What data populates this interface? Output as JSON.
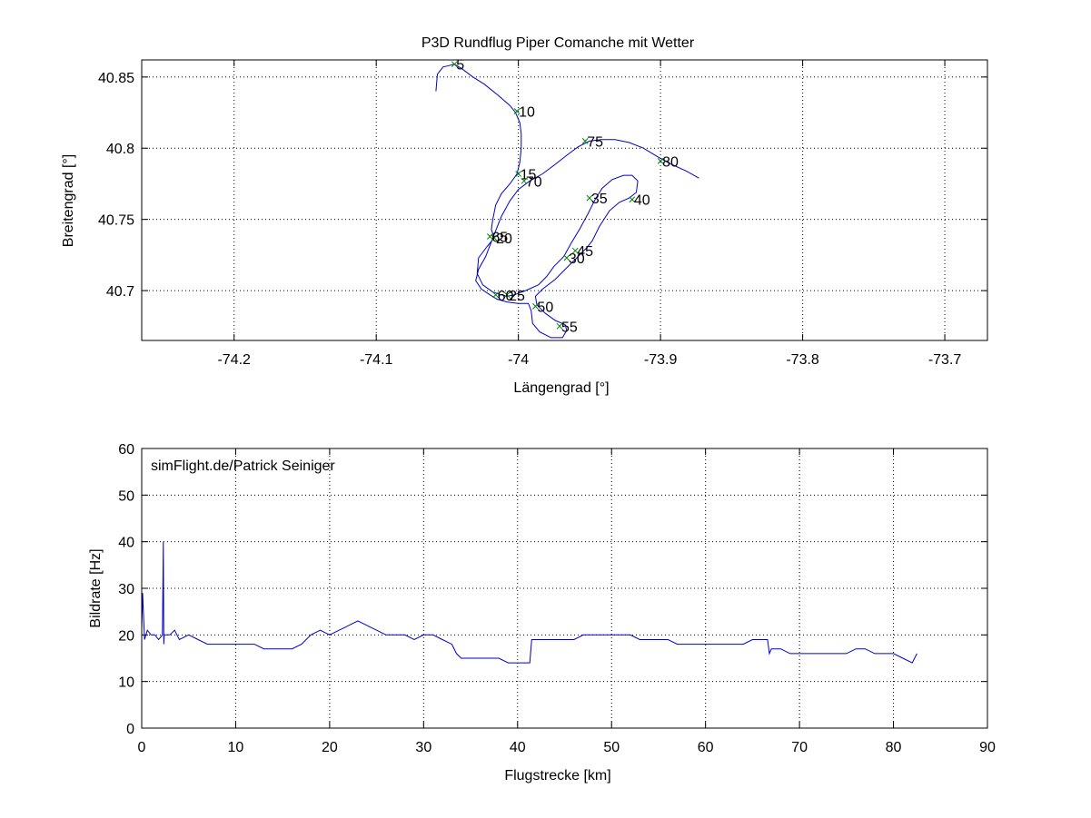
{
  "figure": {
    "background": "#ffffff"
  },
  "chart_data": [
    {
      "type": "line",
      "title": "P3D Rundflug Piper Comanche mit Wetter",
      "xlabel": "Längengrad [°]",
      "ylabel": "Breitengrad [°]",
      "xlim": [
        -74.265,
        -73.67
      ],
      "ylim": [
        40.665,
        40.862
      ],
      "xticks": [
        -74.2,
        -74.1,
        -74,
        -73.9,
        -73.8,
        -73.7
      ],
      "xtick_labels": [
        "-74.2",
        "-74.1",
        "-74",
        "-73.9",
        "-73.8",
        "-73.7"
      ],
      "yticks": [
        40.7,
        40.75,
        40.8,
        40.85
      ],
      "ytick_labels": [
        "40.7",
        "40.75",
        "40.8",
        "40.85"
      ],
      "grid": true,
      "line_color": "#0000c8",
      "marker_color": "#008000",
      "track": [
        [
          -74.058,
          40.84
        ],
        [
          -74.057,
          40.852
        ],
        [
          -74.053,
          40.857
        ],
        [
          -74.049,
          40.858
        ],
        [
          -74.045,
          40.859
        ],
        [
          -74.04,
          40.856
        ],
        [
          -74.032,
          40.85
        ],
        [
          -74.024,
          40.845
        ],
        [
          -74.014,
          40.837
        ],
        [
          -74.006,
          40.83
        ],
        [
          -74.002,
          40.825
        ],
        [
          -73.999,
          40.818
        ],
        [
          -73.998,
          40.81
        ],
        [
          -73.998,
          40.8
        ],
        [
          -73.999,
          40.79
        ],
        [
          -74.001,
          40.782
        ],
        [
          -74.006,
          40.775
        ],
        [
          -74.012,
          40.768
        ],
        [
          -74.016,
          40.76
        ],
        [
          -74.018,
          40.75
        ],
        [
          -74.019,
          40.743
        ],
        [
          -74.017,
          40.737
        ],
        [
          -74.022,
          40.731
        ],
        [
          -74.028,
          40.723
        ],
        [
          -74.029,
          40.712
        ],
        [
          -74.025,
          40.704
        ],
        [
          -74.018,
          40.699
        ],
        [
          -74.012,
          40.697
        ],
        [
          -74.008,
          40.696
        ],
        [
          -74.003,
          40.697
        ],
        [
          -73.995,
          40.7
        ],
        [
          -73.986,
          40.704
        ],
        [
          -73.98,
          40.71
        ],
        [
          -73.975,
          40.717
        ],
        [
          -73.968,
          40.724
        ],
        [
          -73.963,
          40.733
        ],
        [
          -73.957,
          40.743
        ],
        [
          -73.951,
          40.754
        ],
        [
          -73.946,
          40.764
        ],
        [
          -73.941,
          40.772
        ],
        [
          -73.934,
          40.778
        ],
        [
          -73.926,
          40.781
        ],
        [
          -73.92,
          40.781
        ],
        [
          -73.916,
          40.777
        ],
        [
          -73.917,
          40.769
        ],
        [
          -73.922,
          40.765
        ],
        [
          -73.929,
          40.762
        ],
        [
          -73.936,
          40.756
        ],
        [
          -73.943,
          40.745
        ],
        [
          -73.948,
          40.735
        ],
        [
          -73.952,
          40.73
        ],
        [
          -73.958,
          40.724
        ],
        [
          -73.966,
          40.716
        ],
        [
          -73.974,
          40.708
        ],
        [
          -73.983,
          40.701
        ],
        [
          -73.988,
          40.696
        ],
        [
          -73.987,
          40.69
        ],
        [
          -73.981,
          40.684
        ],
        [
          -73.974,
          40.679
        ],
        [
          -73.967,
          40.676
        ],
        [
          -73.966,
          40.672
        ],
        [
          -73.969,
          40.667
        ],
        [
          -73.977,
          40.667
        ],
        [
          -73.985,
          40.671
        ],
        [
          -73.99,
          40.677
        ],
        [
          -73.991,
          40.686
        ],
        [
          -73.993,
          40.691
        ],
        [
          -74.0,
          40.691
        ],
        [
          -74.008,
          40.692
        ],
        [
          -74.015,
          40.694
        ],
        [
          -74.02,
          40.697
        ],
        [
          -74.026,
          40.701
        ],
        [
          -74.03,
          40.707
        ],
        [
          -74.028,
          40.715
        ],
        [
          -74.023,
          40.724
        ],
        [
          -74.018,
          40.737
        ],
        [
          -74.012,
          40.752
        ],
        [
          -74.006,
          40.763
        ],
        [
          -74.0,
          40.771
        ],
        [
          -73.992,
          40.777
        ],
        [
          -73.983,
          40.782
        ],
        [
          -73.975,
          40.788
        ],
        [
          -73.966,
          40.795
        ],
        [
          -73.958,
          40.801
        ],
        [
          -73.95,
          40.805
        ],
        [
          -73.942,
          40.806
        ],
        [
          -73.932,
          40.806
        ],
        [
          -73.922,
          40.804
        ],
        [
          -73.912,
          40.8
        ],
        [
          -73.902,
          40.794
        ],
        [
          -73.893,
          40.789
        ],
        [
          -73.882,
          40.784
        ],
        [
          -73.873,
          40.779
        ]
      ],
      "markers": [
        {
          "label": "5",
          "x": -74.045,
          "y": 40.859
        },
        {
          "label": "10",
          "x": -74.001,
          "y": 40.826
        },
        {
          "label": "15",
          "x": -74.0,
          "y": 40.782
        },
        {
          "label": "20",
          "x": -74.017,
          "y": 40.737
        },
        {
          "label": "25",
          "x": -74.008,
          "y": 40.697
        },
        {
          "label": "30",
          "x": -73.966,
          "y": 40.723
        },
        {
          "label": "35",
          "x": -73.95,
          "y": 40.765
        },
        {
          "label": "40",
          "x": -73.92,
          "y": 40.764
        },
        {
          "label": "45",
          "x": -73.96,
          "y": 40.728
        },
        {
          "label": "50",
          "x": -73.988,
          "y": 40.689
        },
        {
          "label": "55",
          "x": -73.971,
          "y": 40.675
        },
        {
          "label": "60",
          "x": -74.016,
          "y": 40.697
        },
        {
          "label": "65",
          "x": -74.02,
          "y": 40.738
        },
        {
          "label": "70",
          "x": -73.996,
          "y": 40.777
        },
        {
          "label": "75",
          "x": -73.953,
          "y": 40.805
        },
        {
          "label": "80",
          "x": -73.9,
          "y": 40.791
        }
      ]
    },
    {
      "type": "line",
      "title": "",
      "xlabel": "Flugstrecke [km]",
      "ylabel": "Bildrate [Hz]",
      "annotation": "simFlight.de/Patrick Seiniger",
      "xlim": [
        0,
        90
      ],
      "ylim": [
        0,
        60
      ],
      "xticks": [
        0,
        10,
        20,
        30,
        40,
        50,
        60,
        70,
        80,
        90
      ],
      "yticks": [
        0,
        10,
        20,
        30,
        40,
        50,
        60
      ],
      "grid": true,
      "line_color": "#0000c8",
      "series": [
        {
          "x": [
            0,
            0.1,
            0.3,
            0.6,
            1.0,
            1.4,
            1.8,
            2.2,
            2.3,
            2.35,
            2.4,
            2.5,
            3,
            3.5,
            4,
            5,
            6,
            7,
            8,
            9,
            10,
            11,
            12,
            13,
            14,
            15,
            16,
            17,
            18,
            19,
            20,
            21,
            22,
            23,
            24,
            25,
            26,
            27,
            28,
            29,
            30,
            31,
            32,
            33,
            33.5,
            34,
            35,
            36,
            37,
            38,
            39,
            40,
            41,
            41.3,
            41.5,
            42,
            43,
            44,
            45,
            46,
            47,
            48,
            49,
            50,
            51,
            52,
            53,
            54,
            55,
            56,
            57,
            58,
            59,
            60,
            61,
            62,
            63,
            64,
            65,
            66,
            66.6,
            66.8,
            67,
            68,
            69,
            70,
            71,
            72,
            73,
            74,
            75,
            76,
            77,
            78,
            79,
            80,
            81,
            82,
            82.5
          ],
          "values": [
            21,
            29,
            19,
            21,
            20,
            20,
            19,
            20,
            40,
            18,
            20,
            20,
            20,
            21,
            19,
            20,
            19,
            18,
            18,
            18,
            18,
            18,
            18,
            17,
            17,
            17,
            17,
            18,
            20,
            21,
            20,
            21,
            22,
            23,
            22,
            21,
            20,
            20,
            20,
            19,
            20,
            20,
            19,
            18,
            16,
            15,
            15,
            15,
            15,
            15,
            14,
            14,
            14,
            14,
            19,
            19,
            19,
            19,
            19,
            19,
            20,
            20,
            20,
            20,
            20,
            20,
            19,
            19,
            19,
            19,
            18,
            18,
            18,
            18,
            18,
            18,
            18,
            18,
            19,
            19,
            19,
            16,
            17,
            17,
            16,
            16,
            16,
            16,
            16,
            16,
            16,
            17,
            17,
            16,
            16,
            16,
            15,
            14,
            16
          ]
        }
      ]
    }
  ]
}
